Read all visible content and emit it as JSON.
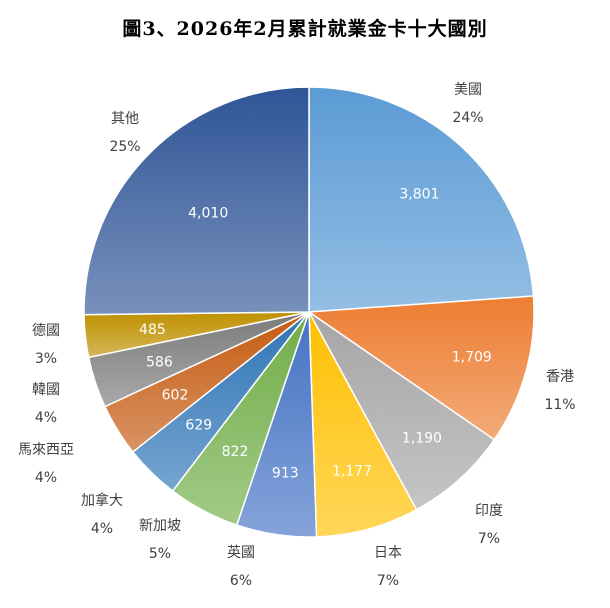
{
  "chart_data": {
    "type": "pie",
    "title": "圖3、2026年2月累計就業金卡十大國別",
    "slices": [
      {
        "label": "美國",
        "value": 3801,
        "value_label": "3,801",
        "percent_label": "24%",
        "color": "#5b9bd5"
      },
      {
        "label": "香港",
        "value": 1709,
        "value_label": "1,709",
        "percent_label": "11%",
        "color": "#ed7d31"
      },
      {
        "label": "印度",
        "value": 1190,
        "value_label": "1,190",
        "percent_label": "7%",
        "color": "#a5a5a5"
      },
      {
        "label": "日本",
        "value": 1177,
        "value_label": "1,177",
        "percent_label": "7%",
        "color": "#ffc000"
      },
      {
        "label": "英國",
        "value": 913,
        "value_label": "913",
        "percent_label": "6%",
        "color": "#4472c4"
      },
      {
        "label": "新加坡",
        "value": 822,
        "value_label": "822",
        "percent_label": "5%",
        "color": "#70ad47"
      },
      {
        "label": "加拿大",
        "value": 629,
        "value_label": "629",
        "percent_label": "4%",
        "color": "#2e75b6"
      },
      {
        "label": "馬來西亞",
        "value": 602,
        "value_label": "602",
        "percent_label": "4%",
        "color": "#c55a11"
      },
      {
        "label": "韓國",
        "value": 586,
        "value_label": "586",
        "percent_label": "4%",
        "color": "#7b7b7b"
      },
      {
        "label": "德國",
        "value": 485,
        "value_label": "485",
        "percent_label": "3%",
        "color": "#bf9000"
      },
      {
        "label": "其他",
        "value": 4010,
        "value_label": "4,010",
        "percent_label": "25%",
        "color": "#2f5597"
      }
    ]
  }
}
